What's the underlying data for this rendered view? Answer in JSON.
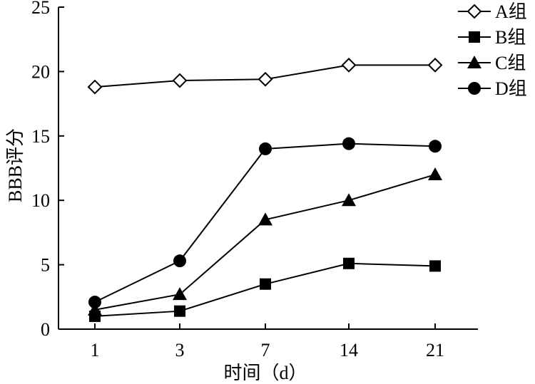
{
  "chart_data": {
    "type": "line",
    "title": "",
    "xlabel": "时间（d）",
    "ylabel": "BBB评分",
    "categories": [
      "1",
      "3",
      "7",
      "14",
      "21"
    ],
    "yticks": [
      0,
      5,
      10,
      15,
      20,
      25
    ],
    "ylim": [
      0,
      25
    ],
    "grid": false,
    "legend_position": "top-right",
    "series": [
      {
        "name": "A组",
        "marker": "diamond-open",
        "values": [
          18.8,
          19.3,
          19.4,
          20.5,
          20.5
        ]
      },
      {
        "name": "B组",
        "marker": "square-filled",
        "values": [
          1.0,
          1.4,
          3.5,
          5.1,
          4.9
        ]
      },
      {
        "name": "C组",
        "marker": "triangle-filled",
        "values": [
          1.5,
          2.7,
          8.5,
          10.0,
          12.0
        ]
      },
      {
        "name": "D组",
        "marker": "circle-filled",
        "values": [
          2.1,
          5.3,
          14.0,
          14.4,
          14.2
        ]
      }
    ],
    "line_color": "#000000"
  }
}
